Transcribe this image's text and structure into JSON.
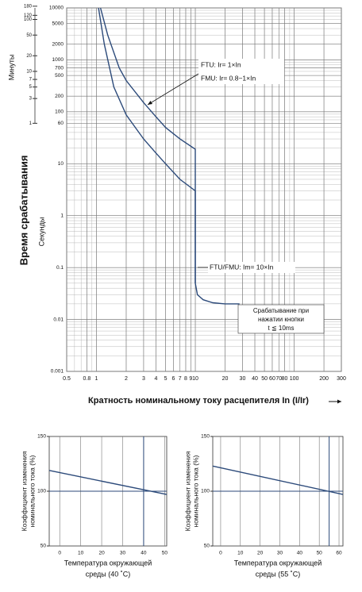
{
  "chart_data": [
    {
      "type": "line",
      "log_x": true,
      "log_y": true,
      "grid": true,
      "minor_grid": true,
      "xlim": [
        0.5,
        300
      ],
      "ylim": [
        0.001,
        10000
      ],
      "xticks": [
        0.5,
        0.8,
        1,
        2,
        3,
        4,
        5,
        6,
        7,
        8,
        9,
        10,
        20,
        30,
        40,
        50,
        60,
        70,
        80,
        100,
        200,
        300
      ],
      "yticks": [
        10000,
        5000,
        2000,
        1000,
        700,
        500,
        200,
        100,
        60,
        10,
        1,
        0.1,
        0.01,
        0.001
      ],
      "y2lim": [
        1.6667e-05,
        166.67
      ],
      "y2ticks": [
        180,
        120,
        100,
        50,
        20,
        10,
        7,
        5,
        3,
        1
      ],
      "xlabel": "Кратность номинальному току расцепителя In (I/Ir)",
      "ylabel": "Время срабатывания",
      "ylabel_units": "Секунды",
      "y2label": "Минуты",
      "series": [
        {
          "color": "#2c4a7a",
          "x": [
            1.1,
            1.3,
            1.7,
            2,
            3,
            4,
            5,
            7,
            10,
            10,
            10.5,
            12,
            15,
            20,
            28
          ],
          "values": [
            10000,
            3000,
            700,
            400,
            150,
            80,
            50,
            30,
            19,
            0.05,
            0.03,
            0.024,
            0.021,
            0.02,
            0.02
          ]
        },
        {
          "color": "#2c4a7a",
          "x": [
            1.05,
            1.2,
            1.5,
            2,
            3,
            4,
            5,
            7,
            10,
            10
          ],
          "values": [
            10000,
            2000,
            300,
            87,
            30,
            16,
            10,
            5,
            3,
            0.05
          ]
        }
      ],
      "annotations": [
        "FTU: Ir= 1×In",
        "FMU: Ir= 0.8~1×In",
        "FTU/FMU: Im= 10×In",
        "Срабатывание при",
        "нажатии кнопки",
        "t ≦ 10ms"
      ]
    },
    {
      "type": "line",
      "grid": true,
      "xlim": [
        -5,
        51
      ],
      "ylim": [
        50,
        150
      ],
      "xticks": [
        0,
        10,
        20,
        30,
        40,
        50
      ],
      "yticks": [
        50,
        100,
        150
      ],
      "xlabel": [
        "Температура окружающей",
        "среды (40 ˚C)"
      ],
      "ylabel": [
        "Коэффициент изменения",
        "номинального тока (%)"
      ],
      "ref_lines": {
        "x": 40,
        "y": 100
      },
      "color": "#2c4a7a",
      "series": [
        {
          "color": "#2c4a7a",
          "x": [
            -5,
            51
          ],
          "values": [
            119,
            97
          ]
        }
      ]
    },
    {
      "type": "line",
      "grid": true,
      "xlim": [
        -4,
        62
      ],
      "ylim": [
        50,
        150
      ],
      "xticks": [
        0,
        10,
        20,
        30,
        40,
        50,
        60
      ],
      "yticks": [
        50,
        100,
        150
      ],
      "xlabel": [
        "Температура окружающей",
        "среды (55 ˚C)"
      ],
      "ylabel": [
        "Коэффициент изменения",
        "номинального тока (%)"
      ],
      "ref_lines": {
        "x": 55,
        "y": 100
      },
      "color": "#2c4a7a",
      "series": [
        {
          "color": "#2c4a7a",
          "x": [
            -4,
            62
          ],
          "values": [
            123,
            97
          ]
        }
      ]
    }
  ]
}
